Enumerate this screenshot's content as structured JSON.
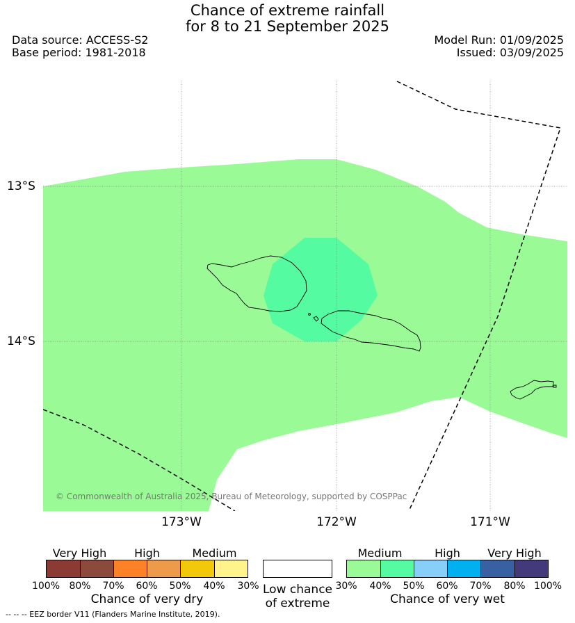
{
  "title": {
    "line1": "Chance of extreme rainfall",
    "line2": "for 8 to 21 September 2025"
  },
  "meta": {
    "data_source": "Data source: ACCESS-S2",
    "base_period": "Base period: 1981-2018",
    "model_run": "Model Run: 01/09/2025",
    "issued": "Issued: 03/09/2025"
  },
  "map": {
    "lat_labels": [
      "13°S",
      "14°S"
    ],
    "lon_labels": [
      "173°W",
      "172°W",
      "171°W"
    ],
    "copyright": "© Commonwealth of Australia 2025, Bureau of Meteorology, supported by COSPPac",
    "colors": {
      "wet_medium_30_40": "#9afb96",
      "wet_medium_40_50": "#55fba0",
      "land_outline": "#000000",
      "eez_border": "#000000"
    }
  },
  "legend": {
    "dry": {
      "categories": [
        "Very High",
        "High",
        "Medium"
      ],
      "ticks": [
        "100%",
        "80%",
        "70%",
        "60%",
        "50%",
        "40%",
        "30%"
      ],
      "title": "Chance of very dry",
      "colors": [
        "#8b3a34",
        "#8c4a3c",
        "#fd8127",
        "#ee9a4b",
        "#f2c80a",
        "#fff48c"
      ]
    },
    "low": {
      "line1": "Low chance",
      "line2": "of extreme",
      "color": "#ffffff"
    },
    "wet": {
      "categories": [
        "Medium",
        "High",
        "Very High"
      ],
      "ticks": [
        "30%",
        "40%",
        "50%",
        "60%",
        "70%",
        "80%",
        "100%"
      ],
      "title": "Chance of very wet",
      "colors": [
        "#9afb96",
        "#55fba0",
        "#87cef9",
        "#01b0ef",
        "#3960a0",
        "#423a7b"
      ]
    }
  },
  "footnote": "-- -- -- EEZ border V11 (Flanders Marine Institute, 2019)."
}
